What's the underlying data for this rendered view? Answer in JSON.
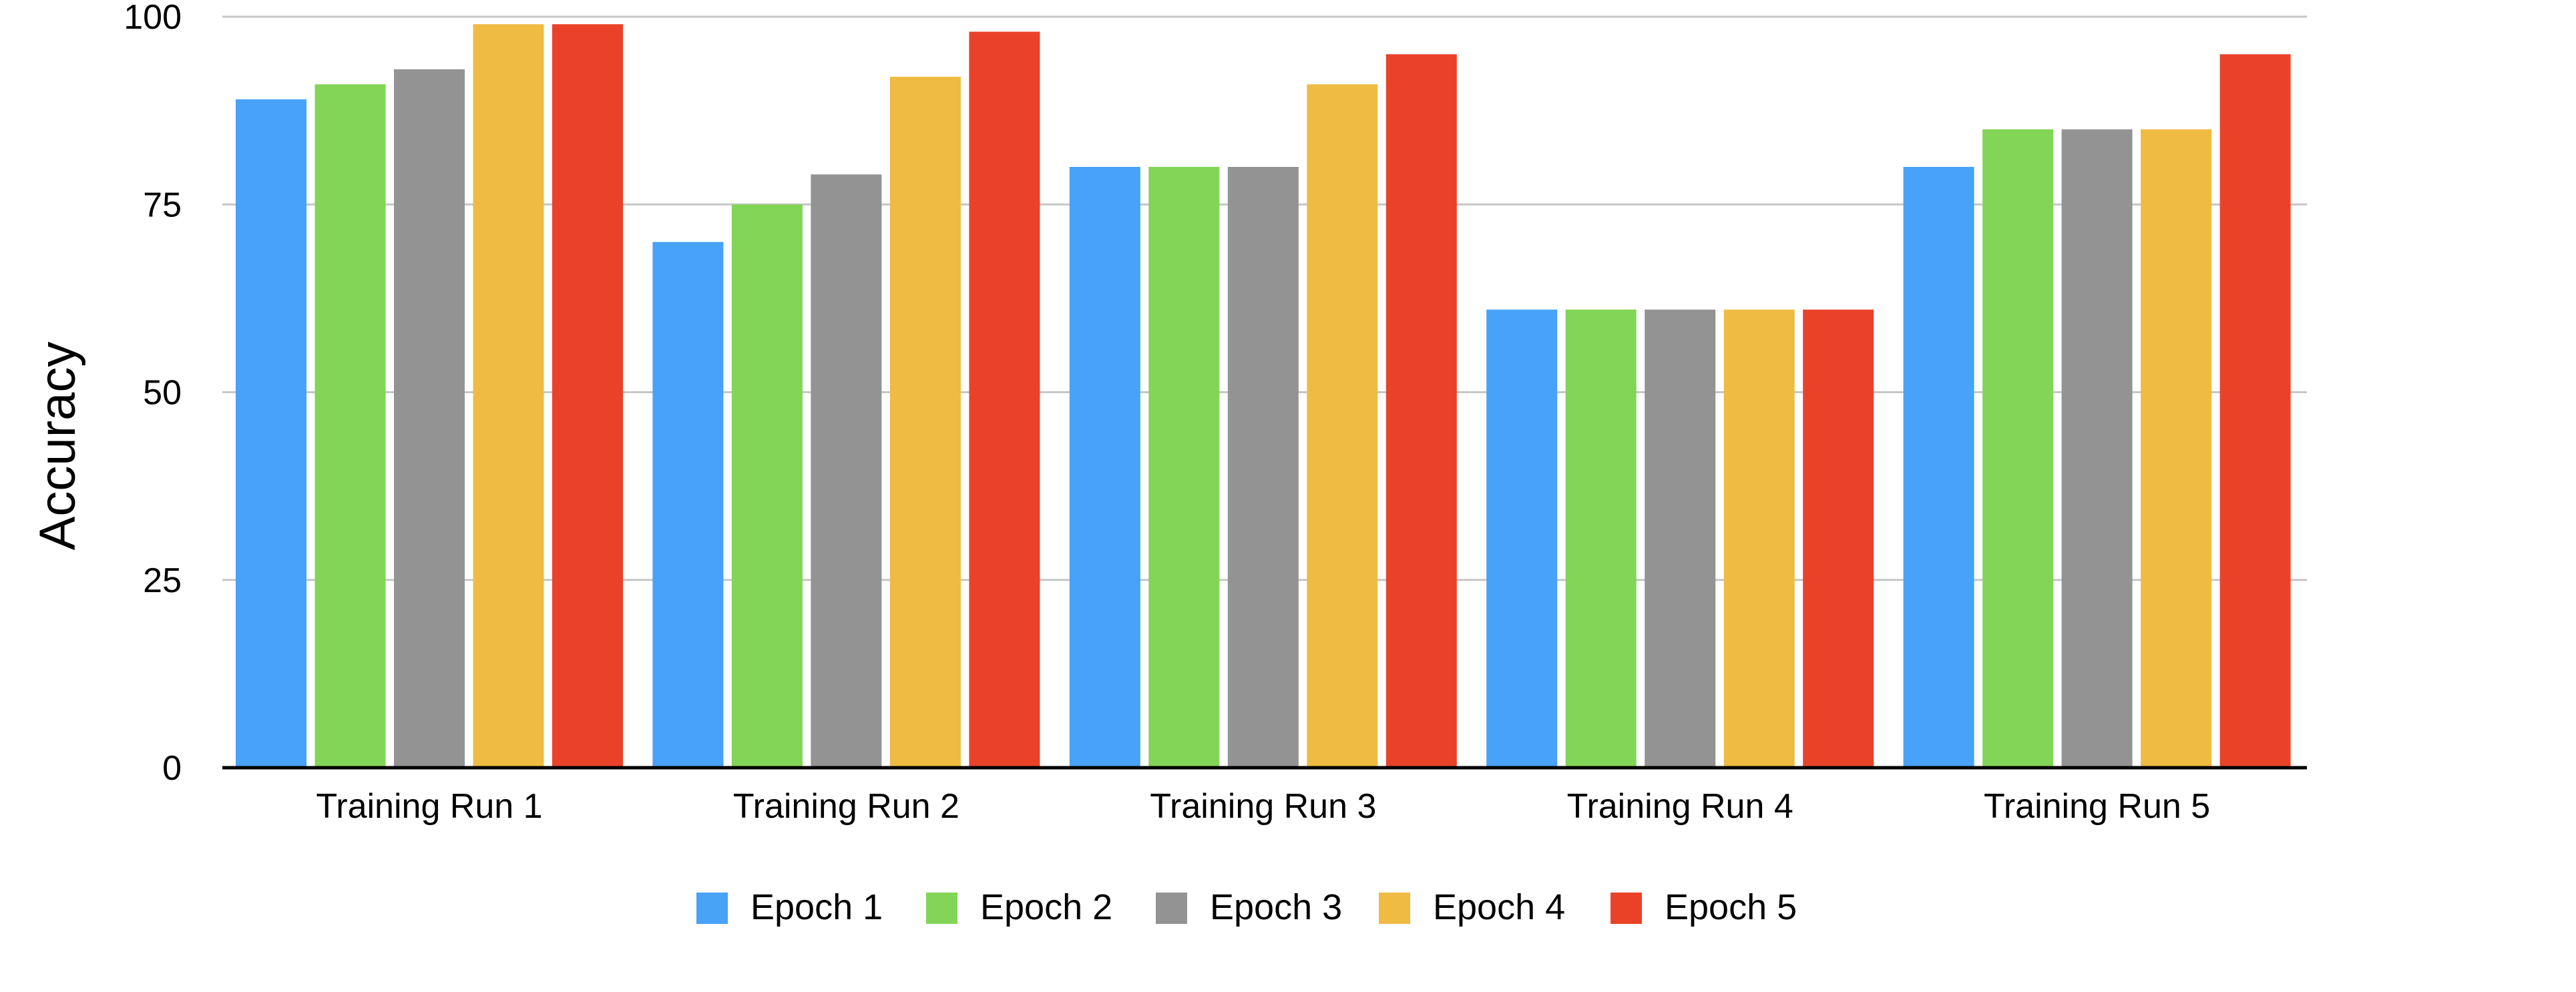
{
  "chart_data": {
    "type": "bar",
    "title": "",
    "xlabel": "",
    "ylabel": "Accuracy",
    "ylim": [
      0,
      100
    ],
    "yticks": [
      0,
      25,
      50,
      75,
      100
    ],
    "grid": true,
    "legend_position": "bottom",
    "categories": [
      "Training Run 1",
      "Training Run 2",
      "Training Run 3",
      "Training Run 4",
      "Training Run 5"
    ],
    "series": [
      {
        "name": "Epoch 1",
        "color": "#47a2f8",
        "values": [
          89,
          70,
          80,
          61,
          80
        ]
      },
      {
        "name": "Epoch 2",
        "color": "#82d557",
        "values": [
          91,
          75,
          80,
          61,
          85
        ]
      },
      {
        "name": "Epoch 3",
        "color": "#939393",
        "values": [
          93,
          79,
          80,
          61,
          85
        ]
      },
      {
        "name": "Epoch 4",
        "color": "#f0bb43",
        "values": [
          99,
          92,
          91,
          61,
          85
        ]
      },
      {
        "name": "Epoch 5",
        "color": "#ea4229",
        "values": [
          99,
          98,
          95,
          61,
          95
        ]
      }
    ]
  }
}
